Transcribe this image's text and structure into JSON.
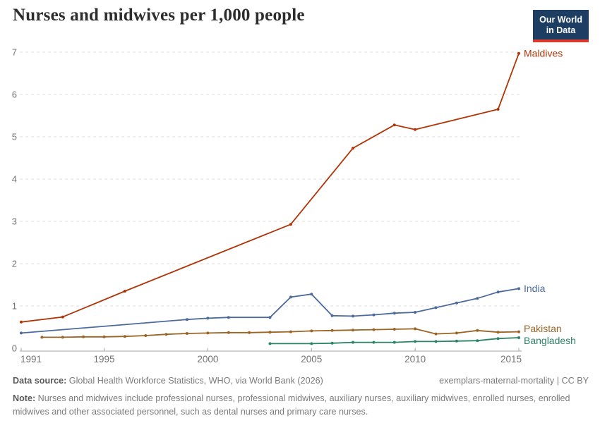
{
  "header": {
    "title": "Nurses and midwives per 1,000 people",
    "logo": {
      "line1": "Our World",
      "line2": "in Data",
      "bg_color": "#1d3d63",
      "accent_color": "#d93a2b"
    }
  },
  "chart_data": {
    "type": "line",
    "title": "Nurses and midwives per 1,000 people",
    "xlabel": "",
    "ylabel": "",
    "xlim": [
      1991,
      2015.3
    ],
    "ylim": [
      0,
      7
    ],
    "grid": "horizontal-dashed",
    "legend_position": "right-end-labels",
    "x_ticks": [
      1991,
      1995,
      2000,
      2005,
      2010,
      2015
    ],
    "x_tick_labels": [
      "1991",
      "1995",
      "2000",
      "2005",
      "2010",
      "2015"
    ],
    "y_ticks": [
      0,
      1,
      2,
      3,
      4,
      5,
      6,
      7
    ],
    "y_tick_labels": [
      "0",
      "1",
      "2",
      "3",
      "4",
      "5",
      "6",
      "7"
    ],
    "series": [
      {
        "name": "Maldives",
        "color": "#b13507",
        "points": [
          [
            1991,
            0.62
          ],
          [
            1993,
            0.74
          ],
          [
            1996,
            1.35
          ],
          [
            2004,
            2.93
          ],
          [
            2007,
            4.73
          ],
          [
            2009,
            5.28
          ],
          [
            2010,
            5.17
          ],
          [
            2014,
            5.65
          ],
          [
            2015,
            6.97
          ]
        ]
      },
      {
        "name": "India",
        "color": "#4c6a9c",
        "points": [
          [
            1991,
            0.36
          ],
          [
            1999,
            0.68
          ],
          [
            2000,
            0.71
          ],
          [
            2001,
            0.73
          ],
          [
            2003,
            0.73
          ],
          [
            2004,
            1.21
          ],
          [
            2005,
            1.28
          ],
          [
            2006,
            0.77
          ],
          [
            2007,
            0.76
          ],
          [
            2008,
            0.79
          ],
          [
            2009,
            0.83
          ],
          [
            2010,
            0.85
          ],
          [
            2011,
            0.96
          ],
          [
            2012,
            1.07
          ],
          [
            2013,
            1.18
          ],
          [
            2014,
            1.33
          ],
          [
            2015,
            1.41
          ]
        ]
      },
      {
        "name": "Pakistan",
        "color": "#9c6425",
        "points": [
          [
            1992,
            0.26
          ],
          [
            1993,
            0.26
          ],
          [
            1994,
            0.27
          ],
          [
            1995,
            0.27
          ],
          [
            1996,
            0.28
          ],
          [
            1997,
            0.3
          ],
          [
            1998,
            0.33
          ],
          [
            1999,
            0.35
          ],
          [
            2000,
            0.36
          ],
          [
            2001,
            0.37
          ],
          [
            2002,
            0.37
          ],
          [
            2003,
            0.38
          ],
          [
            2004,
            0.39
          ],
          [
            2005,
            0.41
          ],
          [
            2006,
            0.42
          ],
          [
            2007,
            0.43
          ],
          [
            2008,
            0.44
          ],
          [
            2009,
            0.45
          ],
          [
            2010,
            0.46
          ],
          [
            2011,
            0.34
          ],
          [
            2012,
            0.36
          ],
          [
            2013,
            0.42
          ],
          [
            2014,
            0.38
          ],
          [
            2015,
            0.39
          ]
        ]
      },
      {
        "name": "Bangladesh",
        "color": "#2c8465",
        "points": [
          [
            2003,
            0.11
          ],
          [
            2005,
            0.11
          ],
          [
            2006,
            0.12
          ],
          [
            2007,
            0.14
          ],
          [
            2008,
            0.14
          ],
          [
            2009,
            0.14
          ],
          [
            2010,
            0.16
          ],
          [
            2011,
            0.16
          ],
          [
            2012,
            0.17
          ],
          [
            2013,
            0.18
          ],
          [
            2014,
            0.23
          ],
          [
            2015,
            0.25
          ]
        ]
      }
    ]
  },
  "footer": {
    "datasource_label": "Data source:",
    "datasource_text": " Global Health Workforce Statistics, WHO, via World Bank (2026)",
    "attribution": "exemplars-maternal-mortality | CC BY",
    "note_label": "Note:",
    "note_text": " Nurses and midwives include professional nurses, professional midwives, auxiliary nurses, auxiliary midwives, enrolled nurses, enrolled midwives and other associated personnel, such as dental nurses and primary care nurses."
  }
}
